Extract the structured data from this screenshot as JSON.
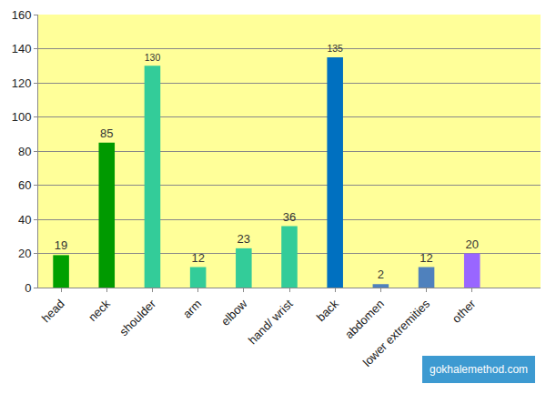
{
  "chart_data": {
    "type": "bar",
    "categories": [
      "head",
      "neck",
      "shoulder",
      "arm",
      "elbow",
      "hand/ wrist",
      "back",
      "abdomen",
      "lower extremities",
      "other",
      null
    ],
    "values": [
      19,
      85,
      130,
      12,
      23,
      36,
      135,
      2,
      12,
      20,
      null
    ],
    "colors": [
      "#00a000",
      "#009a00",
      "#33cc99",
      "#33cc99",
      "#33cc99",
      "#33cc99",
      "#0070c0",
      "#4f81bd",
      "#4f81bd",
      "#9966ff",
      null
    ],
    "ylim": [
      0,
      160
    ],
    "yticks": [
      0,
      20,
      40,
      60,
      80,
      100,
      120,
      140,
      160
    ],
    "grid": true,
    "data_labels": true,
    "annotations": [
      "gokhalemethod.com"
    ]
  }
}
